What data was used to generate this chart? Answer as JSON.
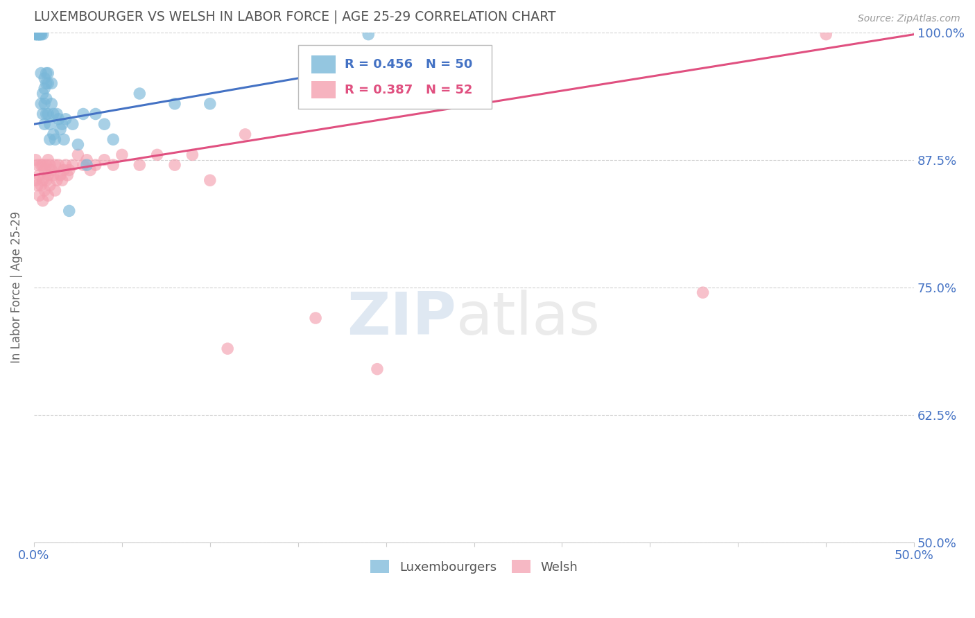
{
  "title": "LUXEMBOURGER VS WELSH IN LABOR FORCE | AGE 25-29 CORRELATION CHART",
  "source": "Source: ZipAtlas.com",
  "ylabel": "In Labor Force | Age 25-29",
  "xlim": [
    0.0,
    0.5
  ],
  "ylim": [
    0.5,
    1.0
  ],
  "xticks": [
    0.0,
    0.05,
    0.1,
    0.15,
    0.2,
    0.25,
    0.3,
    0.35,
    0.4,
    0.45,
    0.5
  ],
  "xticklabels": [
    "0.0%",
    "",
    "",
    "",
    "",
    "",
    "",
    "",
    "",
    "",
    "50.0%"
  ],
  "yticks": [
    0.5,
    0.625,
    0.75,
    0.875,
    1.0
  ],
  "yticklabels": [
    "50.0%",
    "62.5%",
    "75.0%",
    "87.5%",
    "100.0%"
  ],
  "lux_color": "#7ab8d9",
  "welsh_color": "#f4a0b0",
  "lux_line_color": "#4472c4",
  "welsh_line_color": "#e05080",
  "lux_R": 0.456,
  "lux_N": 50,
  "welsh_R": 0.387,
  "welsh_N": 52,
  "lux_scatter_x": [
    0.001,
    0.001,
    0.002,
    0.002,
    0.003,
    0.003,
    0.003,
    0.004,
    0.004,
    0.004,
    0.004,
    0.005,
    0.005,
    0.005,
    0.006,
    0.006,
    0.006,
    0.006,
    0.007,
    0.007,
    0.007,
    0.007,
    0.008,
    0.008,
    0.008,
    0.009,
    0.009,
    0.01,
    0.01,
    0.011,
    0.011,
    0.012,
    0.013,
    0.014,
    0.015,
    0.016,
    0.017,
    0.018,
    0.02,
    0.022,
    0.025,
    0.028,
    0.03,
    0.035,
    0.04,
    0.045,
    0.06,
    0.08,
    0.1,
    0.19
  ],
  "lux_scatter_y": [
    0.998,
    0.998,
    0.998,
    0.998,
    0.998,
    0.998,
    0.998,
    0.998,
    0.998,
    0.96,
    0.93,
    0.998,
    0.94,
    0.92,
    0.955,
    0.945,
    0.93,
    0.91,
    0.96,
    0.95,
    0.935,
    0.92,
    0.96,
    0.95,
    0.92,
    0.91,
    0.895,
    0.95,
    0.93,
    0.92,
    0.9,
    0.895,
    0.92,
    0.915,
    0.905,
    0.91,
    0.895,
    0.915,
    0.825,
    0.91,
    0.89,
    0.92,
    0.87,
    0.92,
    0.91,
    0.895,
    0.94,
    0.93,
    0.93,
    0.998
  ],
  "welsh_scatter_x": [
    0.001,
    0.001,
    0.002,
    0.002,
    0.003,
    0.003,
    0.004,
    0.004,
    0.005,
    0.005,
    0.005,
    0.006,
    0.006,
    0.007,
    0.007,
    0.008,
    0.008,
    0.008,
    0.009,
    0.009,
    0.01,
    0.011,
    0.012,
    0.012,
    0.013,
    0.014,
    0.015,
    0.016,
    0.017,
    0.018,
    0.019,
    0.02,
    0.022,
    0.025,
    0.028,
    0.03,
    0.032,
    0.035,
    0.04,
    0.045,
    0.05,
    0.06,
    0.07,
    0.08,
    0.09,
    0.1,
    0.11,
    0.12,
    0.16,
    0.195,
    0.38,
    0.45
  ],
  "welsh_scatter_y": [
    0.875,
    0.855,
    0.87,
    0.85,
    0.86,
    0.84,
    0.87,
    0.85,
    0.87,
    0.855,
    0.835,
    0.865,
    0.845,
    0.87,
    0.855,
    0.875,
    0.86,
    0.84,
    0.87,
    0.85,
    0.865,
    0.86,
    0.87,
    0.845,
    0.855,
    0.87,
    0.86,
    0.855,
    0.865,
    0.87,
    0.86,
    0.865,
    0.87,
    0.88,
    0.87,
    0.875,
    0.865,
    0.87,
    0.875,
    0.87,
    0.88,
    0.87,
    0.88,
    0.87,
    0.88,
    0.855,
    0.69,
    0.9,
    0.72,
    0.67,
    0.745,
    0.998
  ],
  "background_color": "#ffffff",
  "grid_color": "#cccccc",
  "tick_color": "#4472c4",
  "title_color": "#555555"
}
